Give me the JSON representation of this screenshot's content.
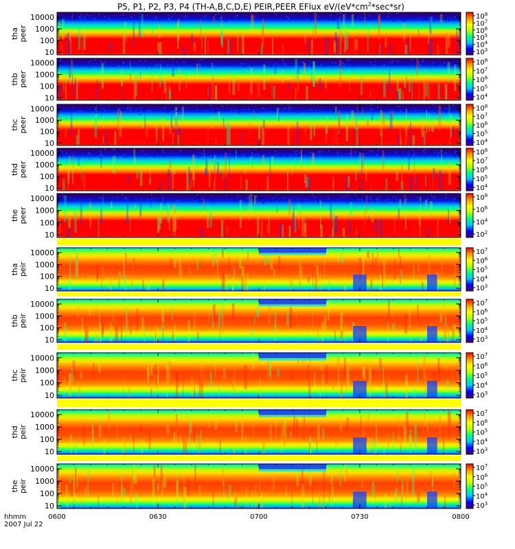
{
  "chart_data": {
    "type": "heatmap",
    "title": "P5, P1, P2, P3, P4 (TH-A,B,C,D,E) PEIR,PEER EFlux eV/(eV*cm",
    "title_sup": "2",
    "title_end": "*sec*sr)",
    "x_axis": {
      "prefix_label": "hhmm",
      "date_label": "2007 Jul 22",
      "range_minutes": [
        0,
        120
      ],
      "ticks": [
        {
          "label": "0600",
          "minutes": 0
        },
        {
          "label": "0630",
          "minutes": 30
        },
        {
          "label": "0700",
          "minutes": 60
        },
        {
          "label": "0730",
          "minutes": 90
        },
        {
          "label": "0800",
          "minutes": 120
        }
      ]
    },
    "y_axis": {
      "scale": "log",
      "range": [
        6,
        25000
      ],
      "ticks": [
        {
          "value": 10,
          "label": "10"
        },
        {
          "value": 100,
          "label": "100"
        },
        {
          "value": 1000,
          "label": "1000"
        },
        {
          "value": 10000,
          "label": "10000"
        }
      ]
    },
    "colormap": [
      "#4a007a",
      "#0000ff",
      "#00c8ff",
      "#00ff7f",
      "#b4ff00",
      "#ffff00",
      "#ff9600",
      "#ff0000"
    ],
    "panels": [
      {
        "probe": "tha",
        "product": "peer",
        "cbar_labels": [
          {
            "base": "10",
            "exp": "8"
          },
          {
            "base": "10",
            "exp": "7"
          },
          {
            "base": "10",
            "exp": "6"
          },
          {
            "base": "10",
            "exp": "5"
          },
          {
            "base": "10",
            "exp": "4"
          },
          {
            "base": "10",
            "exp": "3"
          }
        ]
      },
      {
        "probe": "thb",
        "product": "peer",
        "cbar_labels": [
          {
            "base": "10",
            "exp": "8"
          },
          {
            "base": "10",
            "exp": "7"
          },
          {
            "base": "10",
            "exp": "6"
          },
          {
            "base": "10",
            "exp": "5"
          },
          {
            "base": "10",
            "exp": "4"
          }
        ]
      },
      {
        "probe": "thc",
        "product": "peer",
        "cbar_labels": [
          {
            "base": "10",
            "exp": "8"
          },
          {
            "base": "10",
            "exp": "7"
          },
          {
            "base": "10",
            "exp": "6"
          },
          {
            "base": "10",
            "exp": "5"
          },
          {
            "base": "10",
            "exp": "4"
          }
        ]
      },
      {
        "probe": "thd",
        "product": "peer",
        "cbar_labels": [
          {
            "base": "10",
            "exp": "8"
          },
          {
            "base": "10",
            "exp": "7"
          },
          {
            "base": "10",
            "exp": "6"
          },
          {
            "base": "10",
            "exp": "5"
          },
          {
            "base": "10",
            "exp": "4"
          }
        ]
      },
      {
        "probe": "the",
        "product": "peer",
        "cbar_labels": [
          {
            "base": "10",
            "exp": "8"
          },
          {
            "base": "10",
            "exp": "6"
          },
          {
            "base": "10",
            "exp": "4"
          },
          {
            "base": "10",
            "exp": "2"
          }
        ]
      },
      {
        "probe": "tha",
        "product": "peir",
        "cbar_labels": [
          {
            "base": "10",
            "exp": "7"
          },
          {
            "base": "10",
            "exp": "6"
          },
          {
            "base": "10",
            "exp": "5"
          },
          {
            "base": "10",
            "exp": "4"
          },
          {
            "base": "10",
            "exp": "3"
          }
        ]
      },
      {
        "probe": "thb",
        "product": "peir",
        "cbar_labels": [
          {
            "base": "10",
            "exp": "7"
          },
          {
            "base": "10",
            "exp": "6"
          },
          {
            "base": "10",
            "exp": "5"
          },
          {
            "base": "10",
            "exp": "4"
          },
          {
            "base": "10",
            "exp": "3"
          }
        ]
      },
      {
        "probe": "thc",
        "product": "peir",
        "cbar_labels": [
          {
            "base": "10",
            "exp": "7"
          },
          {
            "base": "10",
            "exp": "6"
          },
          {
            "base": "10",
            "exp": "5"
          },
          {
            "base": "10",
            "exp": "4"
          },
          {
            "base": "10",
            "exp": "3"
          }
        ]
      },
      {
        "probe": "thd",
        "product": "peir",
        "cbar_labels": [
          {
            "base": "10",
            "exp": "7"
          },
          {
            "base": "10",
            "exp": "6"
          },
          {
            "base": "10",
            "exp": "5"
          },
          {
            "base": "10",
            "exp": "4"
          },
          {
            "base": "10",
            "exp": "3"
          }
        ]
      },
      {
        "probe": "the",
        "product": "peir",
        "cbar_labels": [
          {
            "base": "10",
            "exp": "7"
          },
          {
            "base": "10",
            "exp": "6"
          },
          {
            "base": "10",
            "exp": "5"
          },
          {
            "base": "10",
            "exp": "4"
          },
          {
            "base": "10",
            "exp": "3"
          }
        ]
      }
    ]
  }
}
